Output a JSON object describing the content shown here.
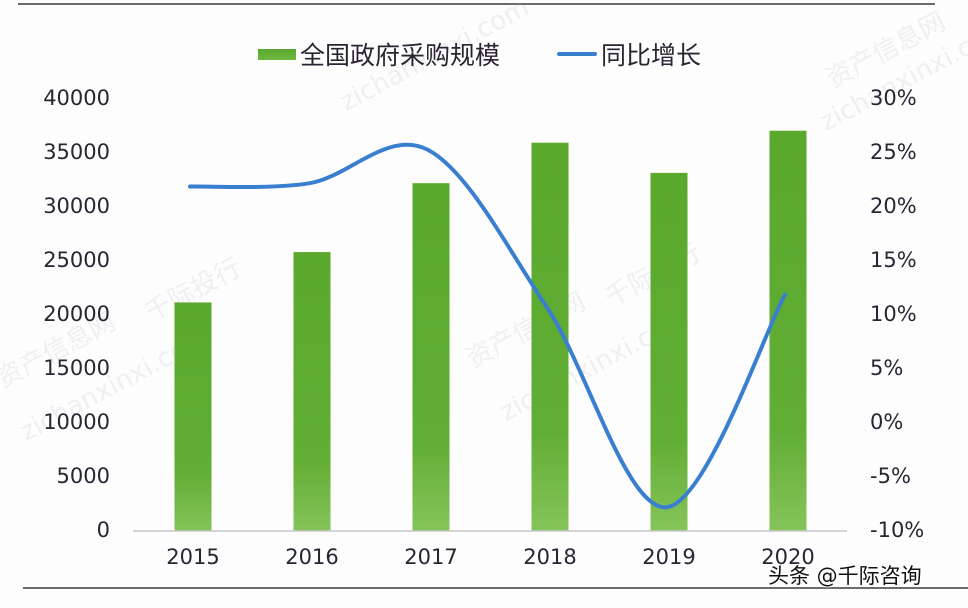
{
  "legend": {
    "bar_label": "全国政府采购规模",
    "line_label": "同比增长"
  },
  "left_axis": {
    "ticks": [
      "40000",
      "35000",
      "30000",
      "25000",
      "20000",
      "15000",
      "10000",
      "5000",
      "0"
    ]
  },
  "right_axis": {
    "ticks": [
      "30%",
      "25%",
      "20%",
      "15%",
      "10%",
      "5%",
      "0%",
      "-5%",
      "-10%"
    ]
  },
  "x_axis": {
    "ticks": [
      "2015",
      "2016",
      "2017",
      "2018",
      "2019",
      "2020"
    ]
  },
  "watermarks": [
    "资产信息网",
    "千际投行",
    "zichanxinxi.com"
  ],
  "credit": "头条 @千际咨询",
  "colors": {
    "bar": "#5fad32",
    "bar_light": "#7cc04f",
    "line": "#3a7fcf",
    "axis": "#c8c8cc",
    "text": "#2b2433"
  },
  "chart_data": {
    "type": "bar+line",
    "title": "",
    "categories": [
      "2015",
      "2016",
      "2017",
      "2018",
      "2019",
      "2020"
    ],
    "series": [
      {
        "name": "全国政府采购规模",
        "type": "bar",
        "axis": "left",
        "values": [
          21070,
          25731,
          32114,
          35861,
          33067,
          36970
        ]
      },
      {
        "name": "同比增长",
        "type": "line",
        "axis": "right",
        "unit": "%",
        "values": [
          21.8,
          22.1,
          25.2,
          10.6,
          -7.9,
          11.8
        ]
      }
    ],
    "xlabel": "",
    "ylabel_left": "",
    "ylabel_right": "",
    "ylim_left": [
      0,
      40000
    ],
    "ylim_right": [
      -10,
      30
    ],
    "grid": false,
    "legend_position": "top"
  }
}
